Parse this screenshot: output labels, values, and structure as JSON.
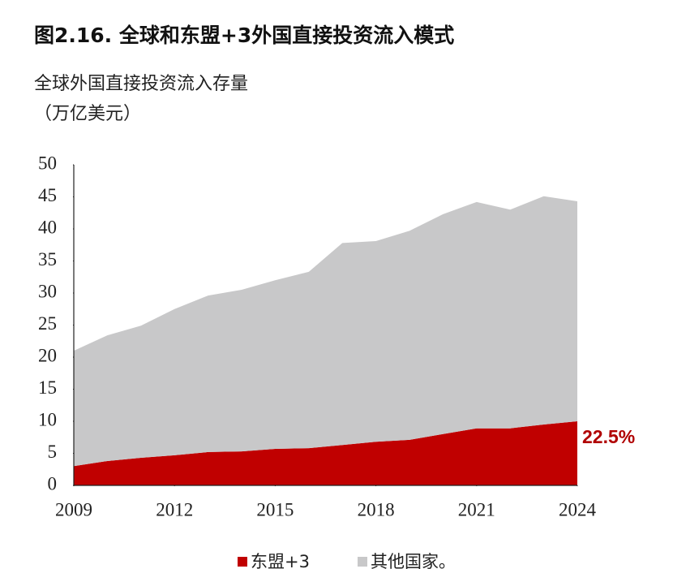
{
  "chart_data": {
    "type": "stacked_area",
    "title": "图2.16. 全球和东盟+3外国直接投资流入模式",
    "ylabel": [
      "全球外国直接投资流入存量",
      "（万亿美元）"
    ],
    "x": [
      2009,
      2010,
      2011,
      2012,
      2013,
      2014,
      2015,
      2016,
      2017,
      2018,
      2019,
      2020,
      2021,
      2022,
      2023,
      2024
    ],
    "xlim": [
      2009,
      2024
    ],
    "xticks": [
      2009,
      2012,
      2015,
      2018,
      2021,
      2024
    ],
    "ylim": [
      0,
      50
    ],
    "yticks": [
      0,
      5,
      10,
      15,
      20,
      25,
      30,
      35,
      40,
      45,
      50
    ],
    "grid": false,
    "series": [
      {
        "name": "东盟+3",
        "color": "#c00000",
        "values": [
          3.0,
          3.8,
          4.3,
          4.7,
          5.2,
          5.3,
          5.7,
          5.8,
          6.3,
          6.8,
          7.1,
          8.0,
          8.9,
          8.9,
          9.5,
          10.0
        ]
      },
      {
        "name": "其他国家。",
        "color": "#c8c8c9",
        "values": [
          18.0,
          19.6,
          20.6,
          22.8,
          24.4,
          25.2,
          26.3,
          27.5,
          31.5,
          31.3,
          32.6,
          34.3,
          35.3,
          34.1,
          35.6,
          34.3
        ]
      }
    ],
    "annotation": "22.5%"
  }
}
